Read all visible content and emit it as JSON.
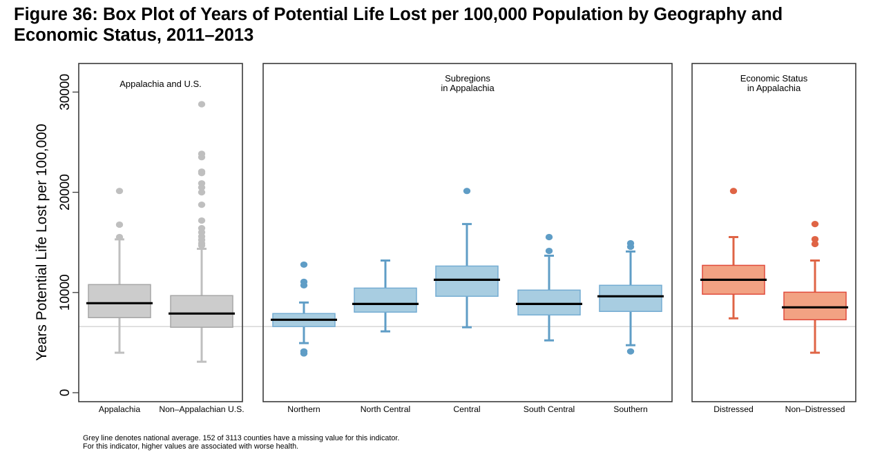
{
  "title_line1": "Figure 36: Box Plot of Years of Potential Life Lost per 100,000 Population by Geography and",
  "title_line2": "Economic Status, 2011–2013",
  "footnote_line1": "Grey line denotes national average.  152 of 3113 counties have a missing value for this indicator.",
  "footnote_line2": "For this indicator, higher values are associated with worse health.",
  "chart_data": {
    "type": "box",
    "title": "Figure 36: Box Plot of Years of Potential Life Lost per 100,000 Population by Geography and Economic Status, 2011–2013",
    "ylabel": "Years Potential Life Lost per 100,000",
    "xlabel": "",
    "ylim": [
      -900,
      32600
    ],
    "yticks": [
      0,
      10000,
      20000,
      30000
    ],
    "ytick_labels": [
      "0",
      "10000",
      "20000",
      "30000"
    ],
    "grid": false,
    "reference_line": {
      "label": "National average",
      "value": 6600,
      "color": "#d9d9d9"
    },
    "panels": [
      {
        "label_lines": [
          "Appalachia and U.S."
        ],
        "color_fill": "#cccccc",
        "color_stroke": "#bfbfbf",
        "color_outline": "#a6a6a6",
        "boxes": [
          {
            "name": "Appalachia",
            "whisker_low": 3990,
            "q1": 7490,
            "median": 8930,
            "q3": 10790,
            "whisker_high": 15300,
            "outliers": [
              20130,
              16770,
              15530
            ]
          },
          {
            "name": "Non–Appalachian U.S.",
            "whisker_low": 3090,
            "q1": 6530,
            "median": 7900,
            "q3": 9690,
            "whisker_high": 14360,
            "outliers": [
              28790,
              23840,
              23500,
              22060,
              21920,
              20890,
              20480,
              20000,
              18760,
              17180,
              16420,
              16010,
              15600,
              15250,
              14910,
              14700
            ]
          }
        ]
      },
      {
        "label_lines": [
          "Subregions",
          "in Appalachia"
        ],
        "color_fill": "#a8cde1",
        "color_stroke": "#5f9dc6",
        "color_outline": "#74acd2",
        "boxes": [
          {
            "name": "Northern",
            "whisker_low": 4950,
            "q1": 6600,
            "median": 7280,
            "q3": 7900,
            "whisker_high": 9000,
            "outliers": [
              12780,
              11060,
              10720,
              4120,
              3920
            ]
          },
          {
            "name": "North Central",
            "whisker_low": 6120,
            "q1": 8040,
            "median": 8860,
            "q3": 10440,
            "whisker_high": 13190,
            "outliers": []
          },
          {
            "name": "Central",
            "whisker_low": 6530,
            "q1": 9620,
            "median": 11270,
            "q3": 12640,
            "whisker_high": 16830,
            "outliers": [
              20130
            ]
          },
          {
            "name": "South Central",
            "whisker_low": 5220,
            "q1": 7760,
            "median": 8860,
            "q3": 10240,
            "whisker_high": 13670,
            "outliers": [
              15530,
              14150
            ]
          },
          {
            "name": "Southern",
            "whisker_low": 4740,
            "q1": 8110,
            "median": 9620,
            "q3": 10720,
            "whisker_high": 14090,
            "outliers": [
              14910,
              14570,
              4120
            ]
          }
        ]
      },
      {
        "label_lines": [
          "Economic Status",
          "in Appalachia"
        ],
        "color_fill": "#f2a283",
        "color_stroke": "#df6445",
        "color_outline": "#e04a3c",
        "boxes": [
          {
            "name": "Distressed",
            "whisker_low": 7420,
            "q1": 9830,
            "median": 11270,
            "q3": 12710,
            "whisker_high": 15530,
            "outliers": [
              20130
            ]
          },
          {
            "name": "Non–Distressed",
            "whisker_low": 3990,
            "q1": 7280,
            "median": 8520,
            "q3": 10030,
            "whisker_high": 13190,
            "outliers": [
              16830,
              15320,
              14840
            ]
          }
        ]
      }
    ]
  }
}
